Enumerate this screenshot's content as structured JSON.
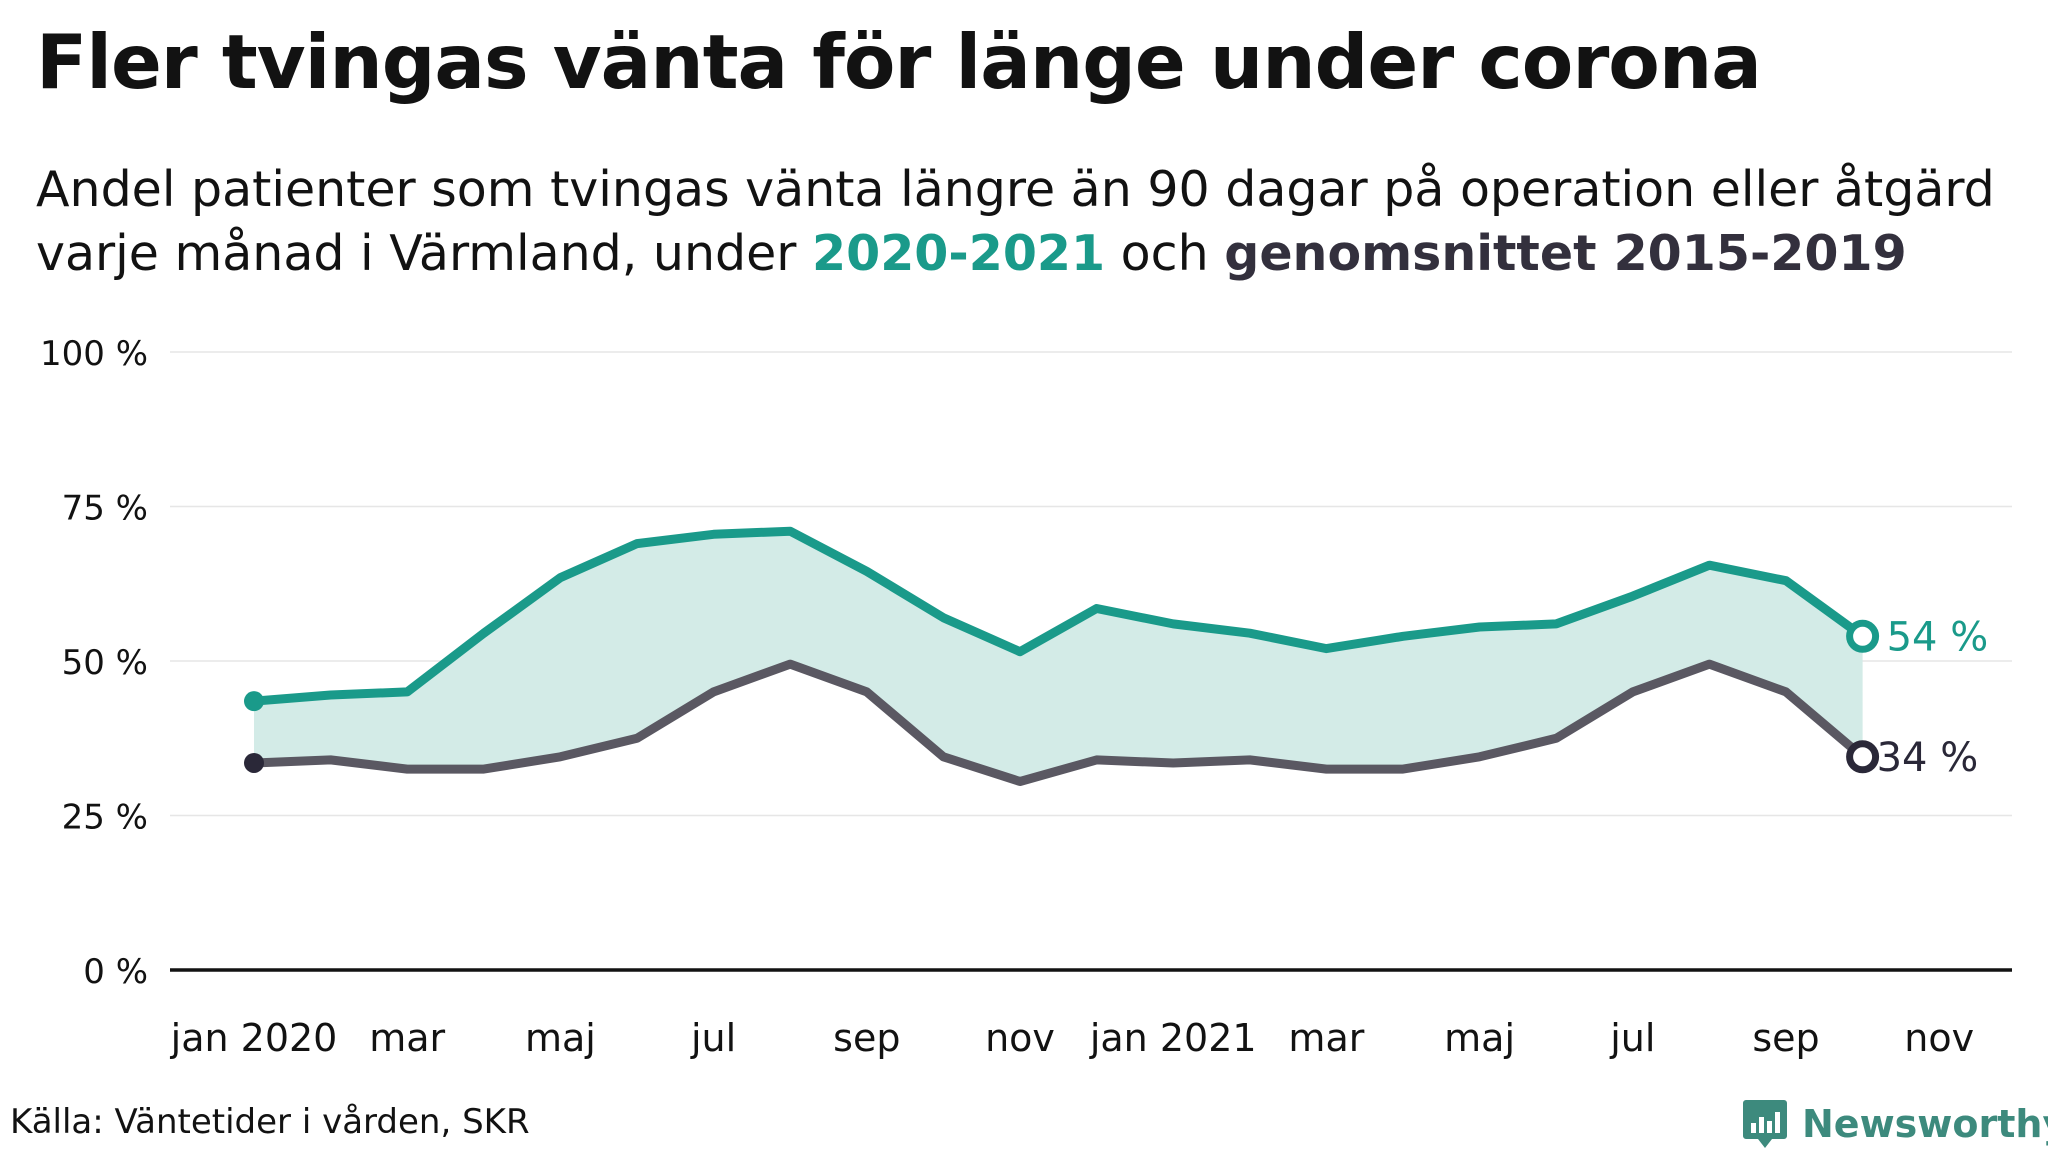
{
  "title": "Fler tvingas vänta för länge under corona",
  "subtitle": {
    "line1": "Andel patienter som tvingas vänta längre än 90 dagar på operation eller åtgärd",
    "line2_prefix": "varje månad i Värmland, under ",
    "highlight_a": "2020-2021",
    "line2_middle": " och ",
    "highlight_b": "genomsnittet 2015-2019"
  },
  "source": "Källa: Väntetider i vården, SKR",
  "brand": {
    "name": "Newsworthy",
    "icon": "newsworthy-logo-icon"
  },
  "colors": {
    "series_a": "#1a9a8a",
    "series_b": "#5a5862",
    "series_b_marker": "#2a2838",
    "fill": "#d3ebe7",
    "grid": "#e6e6e6",
    "axis": "#121212",
    "brand": "#3d8a7d"
  },
  "chart_data": {
    "type": "line",
    "title": "Fler tvingas vänta för länge under corona",
    "x": [
      "2020-01",
      "2020-02",
      "2020-03",
      "2020-04",
      "2020-05",
      "2020-06",
      "2020-07",
      "2020-08",
      "2020-09",
      "2020-10",
      "2020-11",
      "2020-12",
      "2021-01",
      "2021-02",
      "2021-03",
      "2021-04",
      "2021-05",
      "2021-06",
      "2021-07",
      "2021-08",
      "2021-09",
      "2021-10"
    ],
    "x_ticks": [
      {
        "x": "2020-01",
        "label": "jan 2020"
      },
      {
        "x": "2020-03",
        "label": "mar"
      },
      {
        "x": "2020-05",
        "label": "maj"
      },
      {
        "x": "2020-07",
        "label": "jul"
      },
      {
        "x": "2020-09",
        "label": "sep"
      },
      {
        "x": "2020-11",
        "label": "nov"
      },
      {
        "x": "2021-01",
        "label": "jan 2021"
      },
      {
        "x": "2021-03",
        "label": "mar"
      },
      {
        "x": "2021-05",
        "label": "maj"
      },
      {
        "x": "2021-07",
        "label": "jul"
      },
      {
        "x": "2021-09",
        "label": "sep"
      },
      {
        "x": "2021-11",
        "label": "nov"
      }
    ],
    "y_ticks": [
      {
        "value": 0,
        "label": "0 %"
      },
      {
        "value": 25,
        "label": "25 %"
      },
      {
        "value": 50,
        "label": "50 %"
      },
      {
        "value": 75,
        "label": "75 %"
      },
      {
        "value": 100,
        "label": "100 %"
      }
    ],
    "ylim": [
      0,
      100
    ],
    "xlim": [
      "2020-01",
      "2021-11"
    ],
    "grid": true,
    "series": [
      {
        "name": "2020-2021",
        "values": [
          43.5,
          44.5,
          45,
          54.5,
          63.5,
          69,
          70.5,
          71,
          64.5,
          57,
          51.5,
          58.5,
          56,
          54.5,
          52,
          54,
          55.5,
          56,
          60.5,
          65.5,
          63,
          54
        ],
        "end_label": "54 %"
      },
      {
        "name": "genomsnittet 2015-2019",
        "values": [
          33.5,
          34,
          32.5,
          32.5,
          34.5,
          37.5,
          45,
          49.5,
          45,
          34.5,
          30.5,
          34,
          33.5,
          34,
          32.5,
          32.5,
          34.5,
          37.5,
          45,
          49.5,
          45,
          34.5
        ],
        "end_label": "34 %"
      }
    ]
  }
}
